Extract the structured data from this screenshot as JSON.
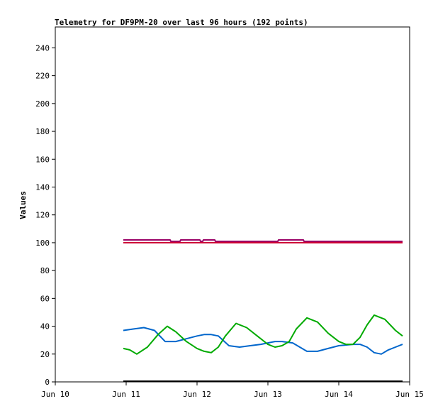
{
  "chart_data": {
    "type": "line",
    "title": "Telemetry for DF9PM-20 over last 96 hours (192 points)",
    "xlabel": "",
    "ylabel": "Values",
    "x_tick_labels": [
      "Jun 10",
      "Jun 11",
      "Jun 12",
      "Jun 13",
      "Jun 14",
      "Jun 15"
    ],
    "x_ticks_day": [
      10,
      11,
      12,
      13,
      14,
      15
    ],
    "xlim_day": [
      10,
      15
    ],
    "ylim": [
      0,
      255
    ],
    "y_ticks": [
      0,
      20,
      40,
      60,
      80,
      100,
      120,
      140,
      160,
      180,
      200,
      220,
      240
    ],
    "grid": false,
    "legend": "none",
    "series": [
      {
        "color": "#990066",
        "x_day": [
          10.96,
          11.62,
          11.63,
          11.76,
          11.77,
          12.04,
          12.05,
          12.08,
          12.09,
          12.25,
          12.26,
          13.14,
          13.15,
          13.5,
          13.51,
          14.9
        ],
        "y": [
          102,
          102,
          101,
          101,
          102,
          102,
          101,
          101,
          102,
          102,
          101,
          101,
          102,
          102,
          101,
          101
        ]
      },
      {
        "color": "#cc0033",
        "x_day": [
          10.96,
          14.9
        ],
        "y": [
          100,
          100
        ]
      },
      {
        "color": "#0066cc",
        "x_day": [
          10.96,
          11.1,
          11.25,
          11.4,
          11.55,
          11.7,
          11.85,
          12.0,
          12.1,
          12.2,
          12.3,
          12.45,
          12.6,
          12.75,
          12.9,
          13.0,
          13.1,
          13.2,
          13.35,
          13.45,
          13.55,
          13.7,
          13.85,
          14.0,
          14.2,
          14.3,
          14.4,
          14.5,
          14.6,
          14.7,
          14.8,
          14.9
        ],
        "y": [
          37,
          38,
          39,
          37,
          29,
          29,
          31,
          33,
          34,
          34,
          33,
          26,
          25,
          26,
          27,
          28,
          29,
          29,
          28,
          25,
          22,
          22,
          24,
          26,
          27,
          27,
          25,
          21,
          20,
          23,
          25,
          27
        ]
      },
      {
        "color": "#00aa00",
        "x_day": [
          10.96,
          11.05,
          11.15,
          11.3,
          11.45,
          11.58,
          11.7,
          11.85,
          12.0,
          12.1,
          12.2,
          12.3,
          12.4,
          12.55,
          12.7,
          12.85,
          13.0,
          13.1,
          13.2,
          13.3,
          13.4,
          13.55,
          13.7,
          13.85,
          14.0,
          14.1,
          14.2,
          14.3,
          14.4,
          14.5,
          14.65,
          14.8,
          14.9
        ],
        "y": [
          24,
          23,
          20,
          25,
          34,
          40,
          36,
          29,
          24,
          22,
          21,
          25,
          33,
          42,
          39,
          33,
          27,
          25,
          26,
          29,
          38,
          46,
          43,
          35,
          29,
          27,
          27,
          32,
          41,
          48,
          45,
          37,
          33
        ]
      },
      {
        "color": "#000000",
        "x_day": [
          10.96,
          14.9
        ],
        "y": [
          0.5,
          0.5
        ]
      }
    ]
  }
}
